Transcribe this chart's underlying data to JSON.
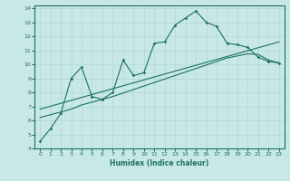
{
  "xlabel": "Humidex (Indice chaleur)",
  "ylabel": "",
  "xlim": [
    -0.5,
    23.5
  ],
  "ylim": [
    4,
    14.2
  ],
  "xticks": [
    0,
    1,
    2,
    3,
    4,
    5,
    6,
    7,
    8,
    9,
    10,
    11,
    12,
    13,
    14,
    15,
    16,
    17,
    18,
    19,
    20,
    21,
    22,
    23
  ],
  "yticks": [
    4,
    5,
    6,
    7,
    8,
    9,
    10,
    11,
    12,
    13,
    14
  ],
  "bg_color": "#c8e8e8",
  "grid_color": "#b0d8d0",
  "line_color": "#1a7060",
  "line1_x": [
    0,
    1,
    2,
    3,
    4,
    5,
    6,
    7,
    8,
    9,
    10,
    11,
    12,
    13,
    14,
    15,
    16,
    17,
    18,
    19,
    20,
    21,
    22,
    23
  ],
  "line1_y": [
    4.5,
    5.4,
    6.5,
    9.0,
    9.8,
    7.7,
    7.5,
    8.0,
    10.3,
    9.2,
    9.4,
    11.5,
    11.6,
    12.8,
    13.3,
    13.8,
    13.0,
    12.7,
    11.5,
    11.4,
    11.2,
    10.5,
    10.2,
    10.1
  ],
  "line2_x": [
    0,
    1,
    2,
    3,
    4,
    5,
    6,
    7,
    8,
    9,
    10,
    11,
    12,
    13,
    14,
    15,
    16,
    17,
    18,
    19,
    20,
    21,
    22,
    23
  ],
  "line2_y": [
    6.2,
    6.4,
    6.6,
    6.8,
    7.1,
    7.3,
    7.5,
    7.7,
    7.95,
    8.2,
    8.45,
    8.7,
    8.95,
    9.2,
    9.45,
    9.7,
    9.95,
    10.2,
    10.45,
    10.6,
    10.75,
    10.7,
    10.3,
    10.1
  ],
  "line3_x": [
    0,
    23
  ],
  "line3_y": [
    6.8,
    11.6
  ]
}
